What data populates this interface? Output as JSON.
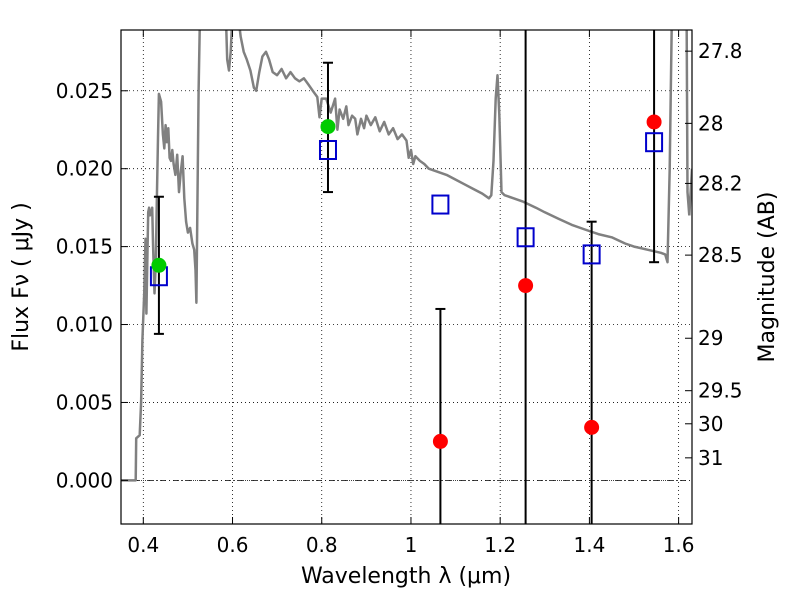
{
  "chart_data": {
    "type": "scatter",
    "xlabel": "Wavelength  λ (μm)",
    "ylabel": "Flux  Fν  ( μJy )",
    "y2label": "Magnitude (AB)",
    "xlim": [
      0.35,
      1.63
    ],
    "ylim": [
      -0.0028,
      0.0289
    ],
    "grid": true,
    "xticks": [
      {
        "v": 0.4,
        "label": "0.4"
      },
      {
        "v": 0.6,
        "label": "0.6"
      },
      {
        "v": 0.8,
        "label": "0.8"
      },
      {
        "v": 1.0,
        "label": "1"
      },
      {
        "v": 1.2,
        "label": "1.2"
      },
      {
        "v": 1.4,
        "label": "1.4"
      },
      {
        "v": 1.6,
        "label": "1.6"
      }
    ],
    "yticks": [
      {
        "v": 0.0,
        "label": "0.000"
      },
      {
        "v": 0.005,
        "label": "0.005"
      },
      {
        "v": 0.01,
        "label": "0.010"
      },
      {
        "v": 0.015,
        "label": "0.015"
      },
      {
        "v": 0.02,
        "label": "0.020"
      },
      {
        "v": 0.025,
        "label": "0.025"
      }
    ],
    "y2ticks": [
      {
        "v": 27.8,
        "label": "27.8"
      },
      {
        "v": 28.0,
        "label": "28"
      },
      {
        "v": 28.2,
        "label": "28.2"
      },
      {
        "v": 28.5,
        "label": "28.5"
      },
      {
        "v": 29.0,
        "label": "29"
      },
      {
        "v": 29.5,
        "label": "29.5"
      },
      {
        "v": 30.0,
        "label": "30"
      },
      {
        "v": 31.0,
        "label": "31"
      }
    ],
    "model_spectrum": {
      "color": "#808080",
      "points": [
        [
          0.35,
          0.0
        ],
        [
          0.383,
          0.0
        ],
        [
          0.384,
          0.0027
        ],
        [
          0.392,
          0.0029
        ],
        [
          0.395,
          0.005
        ],
        [
          0.398,
          0.009
        ],
        [
          0.402,
          0.012
        ],
        [
          0.405,
          0.0155
        ],
        [
          0.407,
          0.0107
        ],
        [
          0.409,
          0.014
        ],
        [
          0.411,
          0.0172
        ],
        [
          0.413,
          0.0175
        ],
        [
          0.415,
          0.017
        ],
        [
          0.418,
          0.0172
        ],
        [
          0.42,
          0.0175
        ],
        [
          0.422,
          0.015
        ],
        [
          0.425,
          0.012
        ],
        [
          0.428,
          0.014
        ],
        [
          0.43,
          0.0175
        ],
        [
          0.433,
          0.022
        ],
        [
          0.435,
          0.0248
        ],
        [
          0.44,
          0.0243
        ],
        [
          0.444,
          0.0222
        ],
        [
          0.447,
          0.0213
        ],
        [
          0.45,
          0.0228
        ],
        [
          0.453,
          0.0217
        ],
        [
          0.456,
          0.0226
        ],
        [
          0.459,
          0.0207
        ],
        [
          0.462,
          0.0205
        ],
        [
          0.465,
          0.0212
        ],
        [
          0.468,
          0.0203
        ],
        [
          0.472,
          0.0196
        ],
        [
          0.476,
          0.0209
        ],
        [
          0.48,
          0.0185
        ],
        [
          0.484,
          0.0198
        ],
        [
          0.488,
          0.0208
        ],
        [
          0.492,
          0.0181
        ],
        [
          0.496,
          0.0166
        ],
        [
          0.5,
          0.0159
        ],
        [
          0.505,
          0.0162
        ],
        [
          0.51,
          0.0152
        ],
        [
          0.514,
          0.0148
        ],
        [
          0.517,
          0.0135
        ],
        [
          0.519,
          0.0114
        ],
        [
          0.521,
          0.017
        ],
        [
          0.524,
          0.025
        ],
        [
          0.527,
          0.03
        ],
        [
          0.585,
          0.03
        ],
        [
          0.588,
          0.027
        ],
        [
          0.592,
          0.0263
        ],
        [
          0.596,
          0.0275
        ],
        [
          0.6,
          0.03
        ],
        [
          0.612,
          0.03
        ],
        [
          0.618,
          0.0285
        ],
        [
          0.625,
          0.0275
        ],
        [
          0.632,
          0.027
        ],
        [
          0.64,
          0.0263
        ],
        [
          0.648,
          0.0252
        ],
        [
          0.653,
          0.025
        ],
        [
          0.66,
          0.0262
        ],
        [
          0.667,
          0.0272
        ],
        [
          0.675,
          0.0275
        ],
        [
          0.682,
          0.027
        ],
        [
          0.69,
          0.0262
        ],
        [
          0.7,
          0.026
        ],
        [
          0.71,
          0.0264
        ],
        [
          0.72,
          0.0258
        ],
        [
          0.73,
          0.0262
        ],
        [
          0.74,
          0.0258
        ],
        [
          0.75,
          0.0256
        ],
        [
          0.76,
          0.0258
        ],
        [
          0.77,
          0.0254
        ],
        [
          0.78,
          0.025
        ],
        [
          0.79,
          0.0246
        ],
        [
          0.795,
          0.0233
        ],
        [
          0.8,
          0.0245
        ],
        [
          0.81,
          0.0245
        ],
        [
          0.82,
          0.0236
        ],
        [
          0.83,
          0.0245
        ],
        [
          0.835,
          0.0225
        ],
        [
          0.84,
          0.0238
        ],
        [
          0.848,
          0.0232
        ],
        [
          0.855,
          0.024
        ],
        [
          0.86,
          0.0228
        ],
        [
          0.868,
          0.0234
        ],
        [
          0.875,
          0.0232
        ],
        [
          0.88,
          0.0222
        ],
        [
          0.888,
          0.0232
        ],
        [
          0.895,
          0.0226
        ],
        [
          0.9,
          0.0234
        ],
        [
          0.91,
          0.0228
        ],
        [
          0.92,
          0.0233
        ],
        [
          0.93,
          0.0224
        ],
        [
          0.94,
          0.023
        ],
        [
          0.95,
          0.0222
        ],
        [
          0.96,
          0.0226
        ],
        [
          0.97,
          0.0219
        ],
        [
          0.98,
          0.0222
        ],
        [
          0.99,
          0.0218
        ],
        [
          0.995,
          0.0207
        ],
        [
          1.0,
          0.0212
        ],
        [
          1.005,
          0.0203
        ],
        [
          1.01,
          0.0208
        ],
        [
          1.02,
          0.0205
        ],
        [
          1.03,
          0.0203
        ],
        [
          1.04,
          0.02
        ],
        [
          1.06,
          0.0198
        ],
        [
          1.08,
          0.0196
        ],
        [
          1.1,
          0.0193
        ],
        [
          1.12,
          0.019
        ],
        [
          1.14,
          0.0187
        ],
        [
          1.16,
          0.0184
        ],
        [
          1.175,
          0.0181
        ],
        [
          1.18,
          0.0183
        ],
        [
          1.185,
          0.0205
        ],
        [
          1.19,
          0.0245
        ],
        [
          1.194,
          0.026
        ],
        [
          1.198,
          0.0235
        ],
        [
          1.203,
          0.0185
        ],
        [
          1.21,
          0.0183
        ],
        [
          1.23,
          0.0181
        ],
        [
          1.25,
          0.0179
        ],
        [
          1.28,
          0.0175
        ],
        [
          1.3,
          0.0172
        ],
        [
          1.33,
          0.0168
        ],
        [
          1.36,
          0.0164
        ],
        [
          1.39,
          0.0161
        ],
        [
          1.42,
          0.0158
        ],
        [
          1.45,
          0.0156
        ],
        [
          1.48,
          0.0152
        ],
        [
          1.5,
          0.015
        ],
        [
          1.53,
          0.0148
        ],
        [
          1.56,
          0.0146
        ],
        [
          1.57,
          0.0145
        ],
        [
          1.575,
          0.014
        ],
        [
          1.58,
          0.02
        ],
        [
          1.585,
          0.03
        ]
      ],
      "right_edge_segment": [
        [
          1.618,
          0.03
        ],
        [
          1.62,
          0.0185
        ],
        [
          1.624,
          0.017
        ],
        [
          1.63,
          0.02
        ]
      ]
    },
    "model_photometry": {
      "marker": "open-square",
      "color": "#0000cc",
      "points": [
        {
          "x": 0.435,
          "y": 0.0131
        },
        {
          "x": 0.814,
          "y": 0.0212
        },
        {
          "x": 1.066,
          "y": 0.0177
        },
        {
          "x": 1.257,
          "y": 0.0156
        },
        {
          "x": 1.405,
          "y": 0.0145
        },
        {
          "x": 1.545,
          "y": 0.0217
        }
      ]
    },
    "observed_detections": {
      "marker": "filled-circle",
      "color": "#00cc00",
      "points": [
        {
          "x": 0.435,
          "y": 0.0138,
          "err_low": 0.0094,
          "err_high": 0.0182
        },
        {
          "x": 0.814,
          "y": 0.0227,
          "err_low": 0.0185,
          "err_high": 0.0268
        }
      ]
    },
    "observed_limits": {
      "marker": "filled-circle",
      "color": "#ff0000",
      "points": [
        {
          "x": 1.066,
          "y": 0.0025,
          "err_low": -0.0028,
          "err_high": 0.011
        },
        {
          "x": 1.257,
          "y": 0.0125,
          "err_low": -0.0028,
          "err_high": 0.0289
        },
        {
          "x": 1.405,
          "y": 0.0034,
          "err_low": -0.0028,
          "err_high": 0.0166
        },
        {
          "x": 1.545,
          "y": 0.023,
          "err_low": 0.014,
          "err_high": 0.0289
        }
      ]
    },
    "zero_line": {
      "y": 0.0,
      "style": "dash-dot"
    }
  }
}
